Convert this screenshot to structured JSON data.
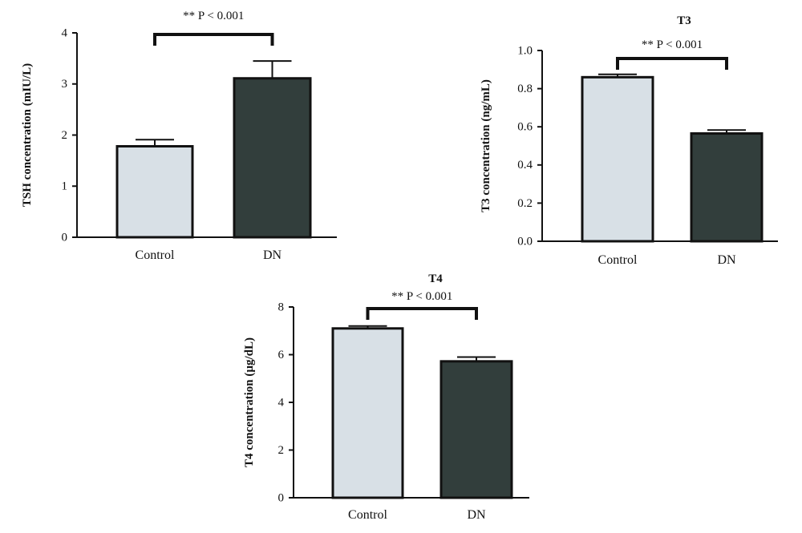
{
  "colors": {
    "control": "#d8e0e6",
    "dn": "#323e3c",
    "stroke": "#111111"
  },
  "chart_data": [
    {
      "id": "tsh",
      "type": "bar",
      "title": "",
      "ylabel": "TSH concentration (mIU/L)",
      "ylim": [
        0,
        4
      ],
      "yticks": [
        0,
        1,
        2,
        3,
        4
      ],
      "ytick_labels": [
        "0",
        "1",
        "2",
        "3",
        "4"
      ],
      "categories": [
        "Control",
        "DN"
      ],
      "values": [
        1.78,
        3.11
      ],
      "errors": [
        0.13,
        0.34
      ],
      "significance": "** P < 0.001"
    },
    {
      "id": "t3",
      "type": "bar",
      "title": "T3",
      "ylabel": "T3 concentration (ng/mL)",
      "ylim": [
        0,
        1.0
      ],
      "yticks": [
        0,
        0.2,
        0.4,
        0.6,
        0.8,
        1.0
      ],
      "ytick_labels": [
        "0.0",
        "0.2",
        "0.4",
        "0.6",
        "0.8",
        "1.0"
      ],
      "categories": [
        "Control",
        "DN"
      ],
      "values": [
        0.86,
        0.565
      ],
      "errors": [
        0.015,
        0.018
      ],
      "significance": "** P < 0.001"
    },
    {
      "id": "t4",
      "type": "bar",
      "title": "T4",
      "ylabel": "T4 concentration (µg/dL)",
      "ylim": [
        0,
        8
      ],
      "yticks": [
        0,
        2,
        4,
        6,
        8
      ],
      "ytick_labels": [
        "0",
        "2",
        "4",
        "6",
        "8"
      ],
      "categories": [
        "Control",
        "DN"
      ],
      "values": [
        7.1,
        5.72
      ],
      "errors": [
        0.1,
        0.18
      ],
      "significance": "** P < 0.001"
    }
  ]
}
